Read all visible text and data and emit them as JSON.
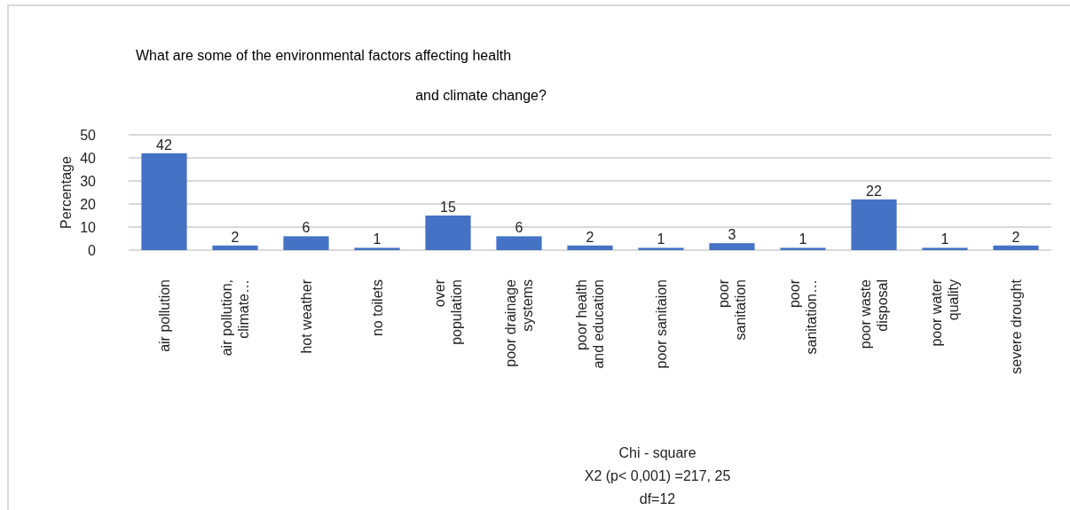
{
  "chart_data": {
    "type": "bar",
    "title": "What are some of the environmental factors affecting health and climate change?",
    "ylabel": "Percentage",
    "categories": [
      "air pollution",
      "air pollution, climate…",
      "hot weather",
      "no toilets",
      "over population",
      "poor drainage systems",
      "poor health and education",
      "poor sanitaion",
      "poor sanitation",
      "poor sanitation…",
      "poor waste disposal",
      "poor water quality",
      "severe drought"
    ],
    "values": [
      42,
      2,
      6,
      1,
      15,
      6,
      2,
      1,
      3,
      1,
      22,
      1,
      2
    ],
    "color": "#4472c4",
    "ylim": [
      0,
      50
    ],
    "yticks": [
      0,
      10,
      20,
      30,
      40,
      50
    ],
    "grid": "y",
    "data_labels": true,
    "annotations": [
      "Chi  - square",
      "X2 (p< 0,001) =217, 25",
      "df=12"
    ]
  }
}
